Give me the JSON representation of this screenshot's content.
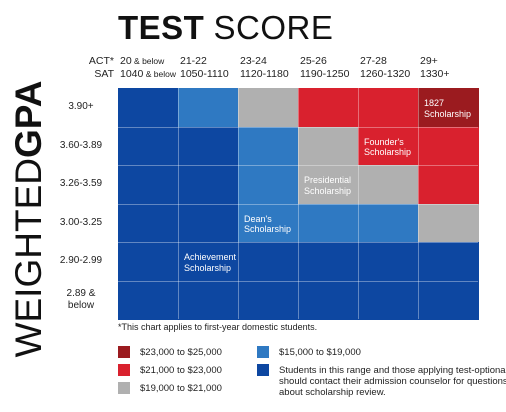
{
  "title": {
    "bold": "TEST",
    "rest": "SCORE"
  },
  "y_title": {
    "light": "WEIGHTED",
    "bold": "GPA"
  },
  "header": {
    "act_label": "ACT*",
    "sat_label": "SAT"
  },
  "colors": {
    "dark_red": "#9b1b1f",
    "red": "#d9212e",
    "gray": "#b0b0b0",
    "light_blue": "#2f79c2",
    "dark_blue": "#0d47a1"
  },
  "chart_data": {
    "type": "heatmap",
    "title": "TEST SCORE",
    "ylabel": "WEIGHTED GPA",
    "columns": [
      {
        "act_main": "20",
        "act_suffix": " & below",
        "sat_main": "1040",
        "sat_suffix": " & below"
      },
      {
        "act_main": "21-22",
        "act_suffix": "",
        "sat_main": "1050-1110",
        "sat_suffix": ""
      },
      {
        "act_main": "23-24",
        "act_suffix": "",
        "sat_main": "1120-1180",
        "sat_suffix": ""
      },
      {
        "act_main": "25-26",
        "act_suffix": "",
        "sat_main": "1190-1250",
        "sat_suffix": ""
      },
      {
        "act_main": "27-28",
        "act_suffix": "",
        "sat_main": "1260-1320",
        "sat_suffix": ""
      },
      {
        "act_main": "29+",
        "act_suffix": "",
        "sat_main": "1330+",
        "sat_suffix": ""
      }
    ],
    "rows": [
      {
        "label": [
          "3.90+"
        ],
        "cells": [
          "dark_blue",
          "light_blue",
          "gray",
          "red",
          "red",
          "dark_red"
        ]
      },
      {
        "label": [
          "3.60-3.89"
        ],
        "cells": [
          "dark_blue",
          "dark_blue",
          "light_blue",
          "gray",
          "red",
          "red"
        ]
      },
      {
        "label": [
          "3.26-3.59"
        ],
        "cells": [
          "dark_blue",
          "dark_blue",
          "light_blue",
          "gray",
          "gray",
          "red"
        ]
      },
      {
        "label": [
          "3.00-3.25"
        ],
        "cells": [
          "dark_blue",
          "dark_blue",
          "light_blue",
          "light_blue",
          "light_blue",
          "gray"
        ]
      },
      {
        "label": [
          "2.90-2.99"
        ],
        "cells": [
          "dark_blue",
          "dark_blue",
          "dark_blue",
          "dark_blue",
          "dark_blue",
          "dark_blue"
        ]
      },
      {
        "label": [
          "2.89 &",
          "below"
        ],
        "cells": [
          "dark_blue",
          "dark_blue",
          "dark_blue",
          "dark_blue",
          "dark_blue",
          "dark_blue"
        ]
      }
    ],
    "annotations": [
      {
        "lines": [
          "1827",
          "Scholarship"
        ],
        "row": 0,
        "col": 5
      },
      {
        "lines": [
          "Founder's",
          "Scholarship"
        ],
        "row": 1,
        "col": 4
      },
      {
        "lines": [
          "Presidential",
          "Scholarship"
        ],
        "row": 2,
        "col": 3
      },
      {
        "lines": [
          "Dean's",
          "Scholarship"
        ],
        "row": 3,
        "col": 2
      },
      {
        "lines": [
          "Achievement",
          "Scholarship"
        ],
        "row": 4,
        "col": 1
      }
    ],
    "note": "*This chart applies to first-year domestic students.",
    "legend": [
      {
        "color": "dark_red",
        "lines": [
          "$23,000 to $25,000"
        ]
      },
      {
        "color": "red",
        "lines": [
          "$21,000 to $23,000"
        ]
      },
      {
        "color": "gray",
        "lines": [
          "$19,000 to $21,000"
        ]
      },
      {
        "color": "light_blue",
        "lines": [
          "$15,000 to $19,000"
        ]
      },
      {
        "color": "dark_blue",
        "lines": [
          "Students in this range and those applying test-optional",
          "should contact their admission counselor for questions",
          "about scholarship review."
        ]
      }
    ]
  }
}
